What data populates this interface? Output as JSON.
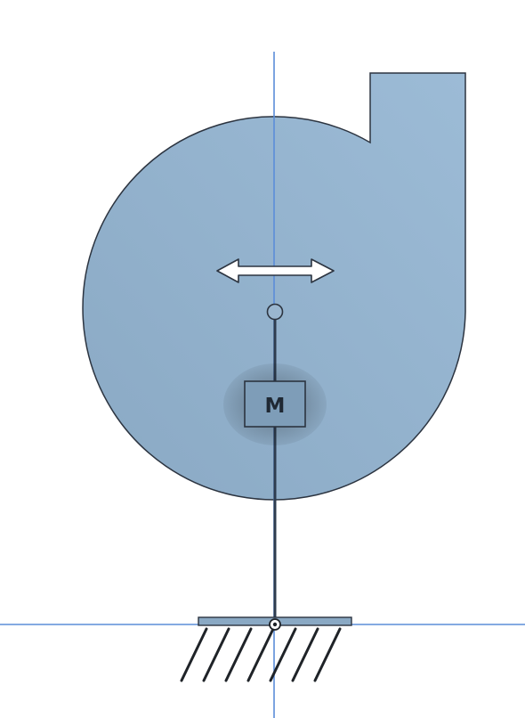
{
  "colors": {
    "background": "#ffffff",
    "housing_fill": "#8aa9c4",
    "housing_fill_light": "#9cbbd6",
    "outline": "#2c3440",
    "guide_line": "#5b8dd9",
    "arrow_fill": "#ffffff",
    "motor_fill": "#7e9db8",
    "motor_text": "#1f2833",
    "shaft": "#2e3c4e"
  },
  "motor": {
    "label": "M"
  },
  "icons": {
    "direction": "double-arrow-horizontal-icon",
    "ground": "ground-hatch-icon",
    "pivot": "pivot-joint-icon"
  }
}
